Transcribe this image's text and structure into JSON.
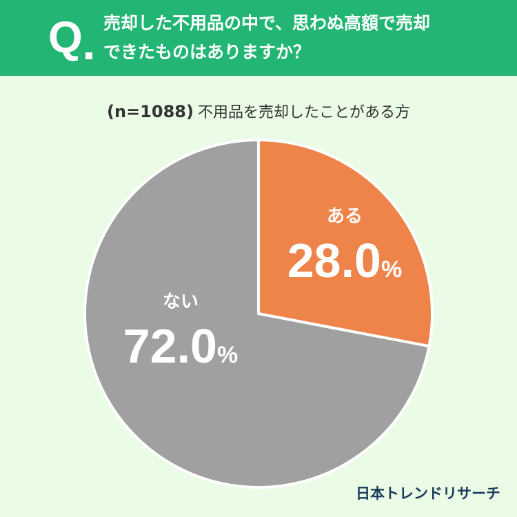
{
  "header": {
    "q_mark": "Q",
    "line1": "売却した不用品の中で、思わぬ高額で売却",
    "line2": "できたものはありますか？"
  },
  "sample": {
    "n_label": "(n=1088)",
    "description": "不用品を売却したことがある方"
  },
  "chart_data": {
    "type": "pie",
    "categories": [
      "ある",
      "ない"
    ],
    "values": [
      28.0,
      72.0
    ],
    "unit": "%",
    "colors": [
      "#ef844a",
      "#a0a0a0"
    ],
    "start": "12 o'clock, clockwise"
  },
  "brand": "日本トレンドリサーチ"
}
